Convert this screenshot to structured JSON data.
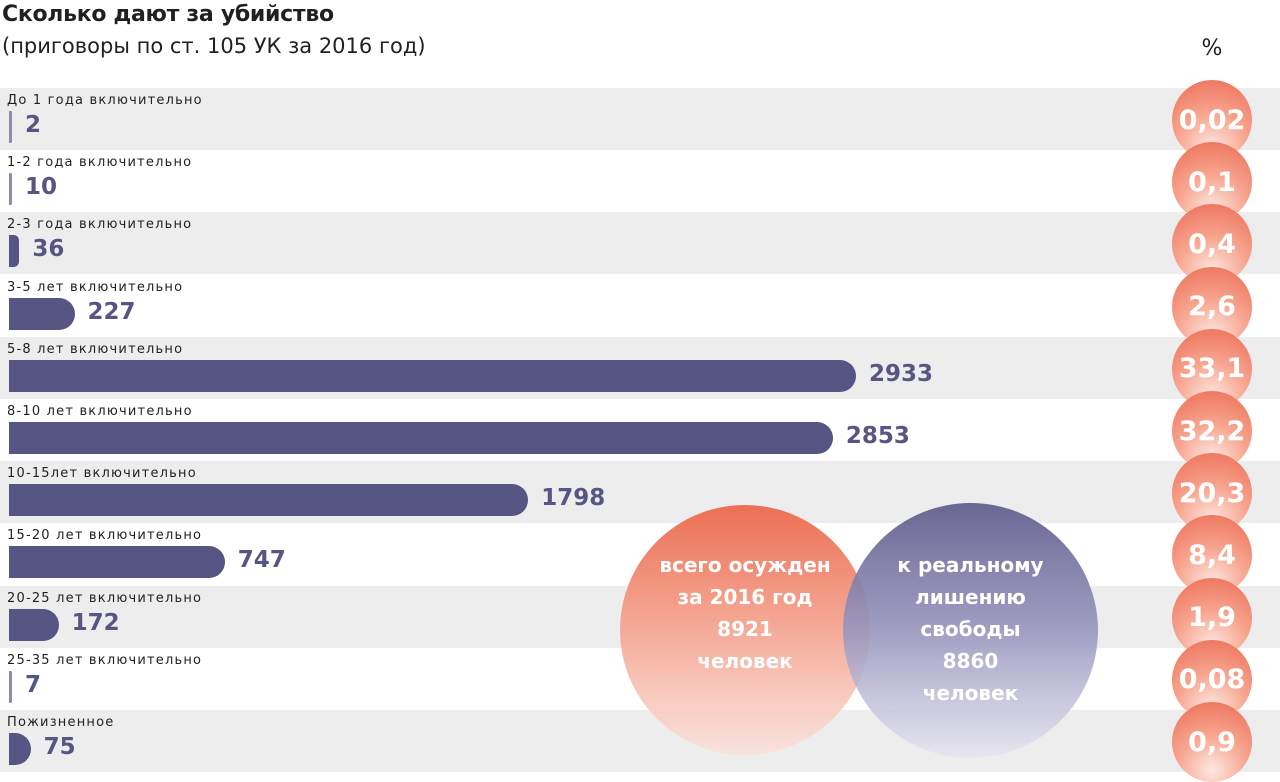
{
  "title": "Сколько дают за убийство",
  "subtitle": "(приговоры по ст. 105 УК за 2016 год)",
  "percent_header": "%",
  "colors": {
    "bar": "#565584",
    "circle_accent": "#ec6a53",
    "row_shade": "#ededed"
  },
  "summary": {
    "total": {
      "line1": "всего осужден",
      "line2": "за 2016 год",
      "value": "8921",
      "unit": "человек"
    },
    "real": {
      "line1": "к реальному",
      "line2": "лишению",
      "line3": "свободы",
      "value": "8860",
      "unit": "человек"
    }
  },
  "chart_data": {
    "type": "bar",
    "title": "Сколько дают за убийство",
    "subtitle": "(приговоры по ст. 105 УК за 2016 год)",
    "categories": [
      "До 1 года включительно",
      "1-2 года включительно",
      "2-3 года включительно",
      "3-5 лет включительно",
      "5-8 лет включительно",
      "8-10 лет включительно",
      "10-15лет включительно",
      "15-20 лет включительно",
      "20-25 лет включительно",
      "25-35 лет включительно",
      "Пожизненное"
    ],
    "values": [
      2,
      10,
      36,
      227,
      2933,
      2853,
      1798,
      747,
      172,
      7,
      75
    ],
    "value_labels": [
      "2",
      "10",
      "36",
      "227",
      "2933",
      "2853",
      "1798",
      "747",
      "172",
      "7",
      "75"
    ],
    "percents": [
      "0,02",
      "0,1",
      "0,4",
      "2,6",
      "33,1",
      "32,2",
      "20,3",
      "8,4",
      "1,9",
      "0,08",
      "0,9"
    ],
    "xlim": [
      0,
      2933
    ],
    "grid": false,
    "legend": "none"
  }
}
